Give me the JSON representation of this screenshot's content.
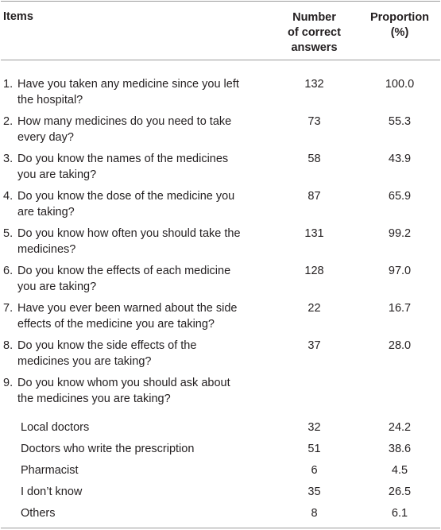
{
  "header": {
    "items": "Items",
    "number_line1": "Number",
    "number_line2": "of correct",
    "number_line3": "answers",
    "proportion_line1": "Proportion",
    "proportion_line2": "(%)"
  },
  "rows": [
    {
      "num": "1.",
      "line1": "Have you taken any medicine since you left",
      "line2": "the hospital?",
      "count": "132",
      "pct": "100.0"
    },
    {
      "num": "2.",
      "line1": "How many medicines do you need to take",
      "line2": "every day?",
      "count": "73",
      "pct": "55.3"
    },
    {
      "num": "3.",
      "line1": "Do you know the names of the medicines",
      "line2": "you are taking?",
      "count": "58",
      "pct": "43.9"
    },
    {
      "num": "4.",
      "line1": "Do you know the dose of the medicine you",
      "line2": "are taking?",
      "count": "87",
      "pct": "65.9"
    },
    {
      "num": "5.",
      "line1": "Do you know how often you should take the",
      "line2": "medicines?",
      "count": "131",
      "pct": "99.2"
    },
    {
      "num": "6.",
      "line1": "Do you know the effects of each medicine",
      "line2": "you are taking?",
      "count": "128",
      "pct": "97.0"
    },
    {
      "num": "7.",
      "line1": "Have you ever been warned about the side",
      "line2": "effects of the medicine you are taking?",
      "count": "22",
      "pct": "16.7"
    },
    {
      "num": "8.",
      "line1": "Do you know the side effects of the",
      "line2": "medicines you are taking?",
      "count": "37",
      "pct": "28.0"
    },
    {
      "num": "9.",
      "line1": "Do you know whom you should ask about",
      "line2": "the medicines you are taking?",
      "count": "",
      "pct": ""
    }
  ],
  "subrows": [
    {
      "label": "Local doctors",
      "count": "32",
      "pct": "24.2"
    },
    {
      "label": "Doctors who write the prescription",
      "count": "51",
      "pct": "38.6"
    },
    {
      "label": "Pharmacist",
      "count": "6",
      "pct": "4.5"
    },
    {
      "label": "I don’t know",
      "count": "35",
      "pct": "26.5"
    },
    {
      "label": "Others",
      "count": "8",
      "pct": "6.1"
    }
  ]
}
